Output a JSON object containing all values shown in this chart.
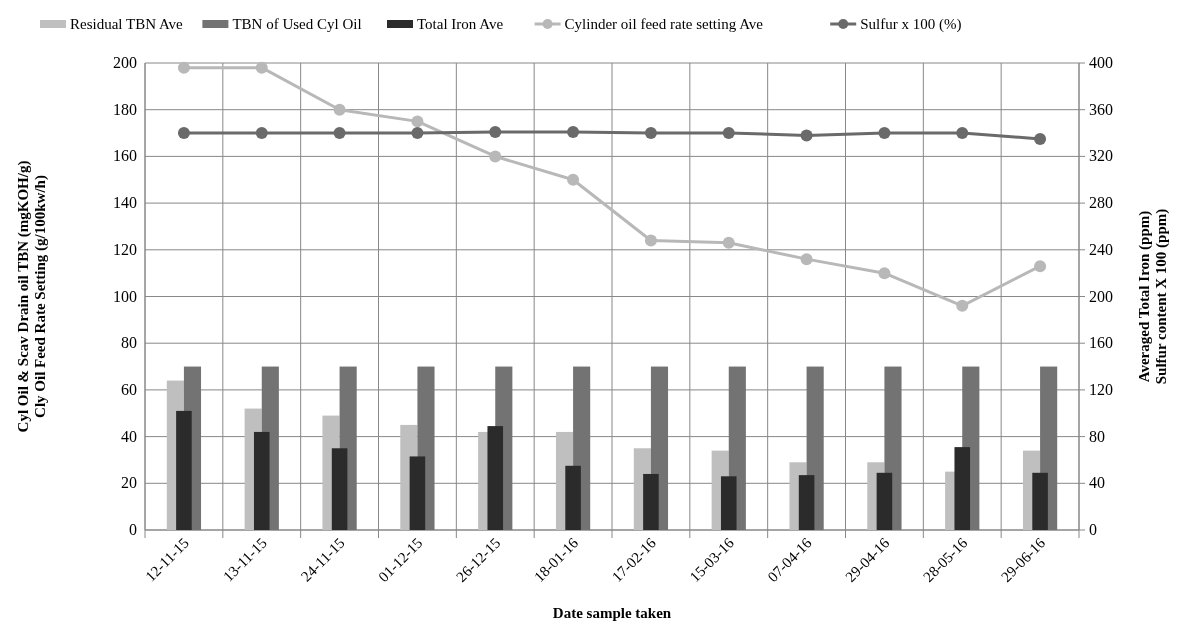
{
  "chart_data": {
    "type": "bar",
    "xlabel": "Date sample taken",
    "ylabel": "Cyl Oil & Scav Drain oil TBN (mgKOH/g)\nCly Oil Feed Rate Setting (g/100kw/h)",
    "y2label": "Averaged Total Iron (ppm)\nSulfur content X 100 (ppm)",
    "categories": [
      "12-11-15",
      "13-11-15",
      "24-11-15",
      "01-12-15",
      "26-12-15",
      "18-01-16",
      "17-02-16",
      "15-03-16",
      "07-04-16",
      "29-04-16",
      "28-05-16",
      "29-06-16"
    ],
    "series": [
      {
        "name": "Residual TBN Ave",
        "color": "#bfbfbf",
        "values": [
          64,
          52,
          49,
          45,
          42,
          42,
          35,
          34,
          29,
          29,
          25,
          34
        ]
      },
      {
        "name": "TBN of Used Cyl Oil",
        "color": "#737373",
        "values": [
          70,
          70,
          70,
          70,
          70,
          70,
          70,
          70,
          70,
          70,
          70,
          70
        ]
      },
      {
        "name": "Total Iron Ave",
        "color": "#2b2b2b",
        "axis": "y2",
        "values": [
          102,
          84,
          70,
          63,
          89,
          55,
          48,
          46,
          47,
          49,
          71,
          49
        ]
      },
      {
        "name": "Cylinder oil feed rate setting Ave",
        "color": "#b8b8b8",
        "type": "line",
        "marker": "circle",
        "values": [
          198,
          198,
          180,
          175,
          160,
          150,
          124,
          123,
          116,
          110,
          96,
          113
        ]
      },
      {
        "name": "Sulfur x 100 (%)",
        "color": "#6a6a6a",
        "type": "line",
        "axis": "y2",
        "marker": "circle",
        "values": [
          340,
          340,
          340,
          340,
          341,
          341,
          340,
          340,
          338,
          340,
          340,
          335
        ]
      }
    ],
    "ylim": [
      0,
      200
    ],
    "yticks": [
      0,
      20,
      40,
      60,
      80,
      100,
      120,
      140,
      160,
      180,
      200
    ],
    "y2lim": [
      0,
      400
    ],
    "y2ticks": [
      0,
      40,
      80,
      120,
      160,
      200,
      240,
      280,
      320,
      360,
      400
    ],
    "grid": true,
    "legend": "top"
  }
}
